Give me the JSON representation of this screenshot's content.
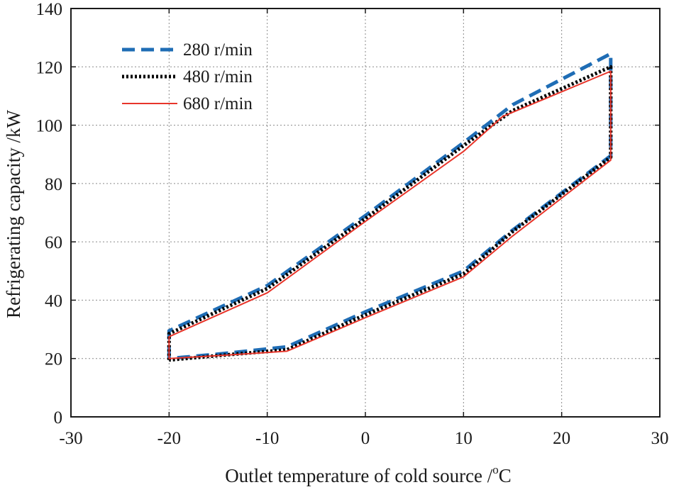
{
  "chart_data": {
    "type": "line",
    "title": "",
    "xlabel": "Outlet temperature of cold source /",
    "xlabel_sup": "o",
    "xlabel_unit": "C",
    "ylabel": "Refrigerating capacity /kW",
    "xlim": [
      -30,
      30
    ],
    "ylim": [
      0,
      140
    ],
    "xticks": [
      -30,
      -20,
      -10,
      0,
      10,
      20,
      30
    ],
    "yticks": [
      0,
      20,
      40,
      60,
      80,
      100,
      120,
      140
    ],
    "xtick_labels": [
      "-30",
      "-20",
      "-10",
      "0",
      "10",
      "20",
      "30"
    ],
    "ytick_labels": [
      "0",
      "20",
      "40",
      "60",
      "80",
      "100",
      "120",
      "140"
    ],
    "grid": true,
    "legend_position": "top-left",
    "series": [
      {
        "name": "280 r/min",
        "color": "#1f6db5",
        "style": "dashed",
        "x": [
          -20,
          -20,
          -10,
          0,
          10,
          15,
          25,
          25,
          15,
          10,
          0,
          -8,
          -15,
          -20
        ],
        "y": [
          20,
          29.5,
          45,
          69,
          94,
          107,
          124.5,
          89.5,
          64,
          50,
          36,
          24,
          21.5,
          20
        ]
      },
      {
        "name": "480 r/min",
        "color": "#000000",
        "style": "dotted",
        "x": [
          -20,
          -20,
          -10,
          0,
          10,
          15,
          25,
          25,
          15,
          10,
          0,
          -8,
          -15,
          -20
        ],
        "y": [
          19.5,
          28.5,
          44,
          68,
          93,
          105,
          120,
          89,
          63.5,
          49,
          35,
          23,
          21,
          19.5
        ]
      },
      {
        "name": "680 r/min",
        "color": "#e8352a",
        "style": "solid",
        "x": [
          -20,
          -20,
          -10,
          0,
          10,
          14,
          25,
          25,
          15,
          10,
          0,
          -8,
          -15,
          -20
        ],
        "y": [
          20,
          27.5,
          42.5,
          67,
          91,
          103,
          118.5,
          88,
          62,
          48,
          34,
          22.5,
          21,
          20
        ]
      }
    ]
  }
}
